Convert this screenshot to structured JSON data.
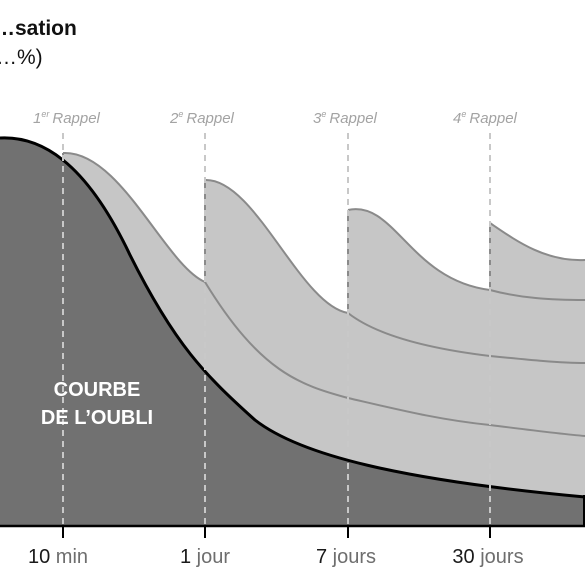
{
  "chart_data": {
    "type": "area",
    "title_line1": "…sation",
    "title_line2": "…%)",
    "x_ticks": [
      {
        "num": "10",
        "unit": "min"
      },
      {
        "num": "1",
        "unit": "jour"
      },
      {
        "num": "7",
        "unit": "jours"
      },
      {
        "num": "30",
        "unit": "jours"
      }
    ],
    "rappels": [
      {
        "num": "1",
        "sup": "er",
        "word": "Rappel"
      },
      {
        "num": "2",
        "sup": "e",
        "word": "Rappel"
      },
      {
        "num": "3",
        "sup": "e",
        "word": "Rappel"
      },
      {
        "num": "4",
        "sup": "e",
        "word": "Rappel"
      }
    ],
    "curve_label_line1": "COURBE",
    "curve_label_line2": "DE L’OUBLI",
    "grid": false,
    "colors": {
      "forgetting_fill": "#717171",
      "review_fill": "#c6c6c6",
      "review_line": "#8a8a8a",
      "curve_line": "#000000",
      "dashed_line": "#c8c8c8"
    }
  }
}
